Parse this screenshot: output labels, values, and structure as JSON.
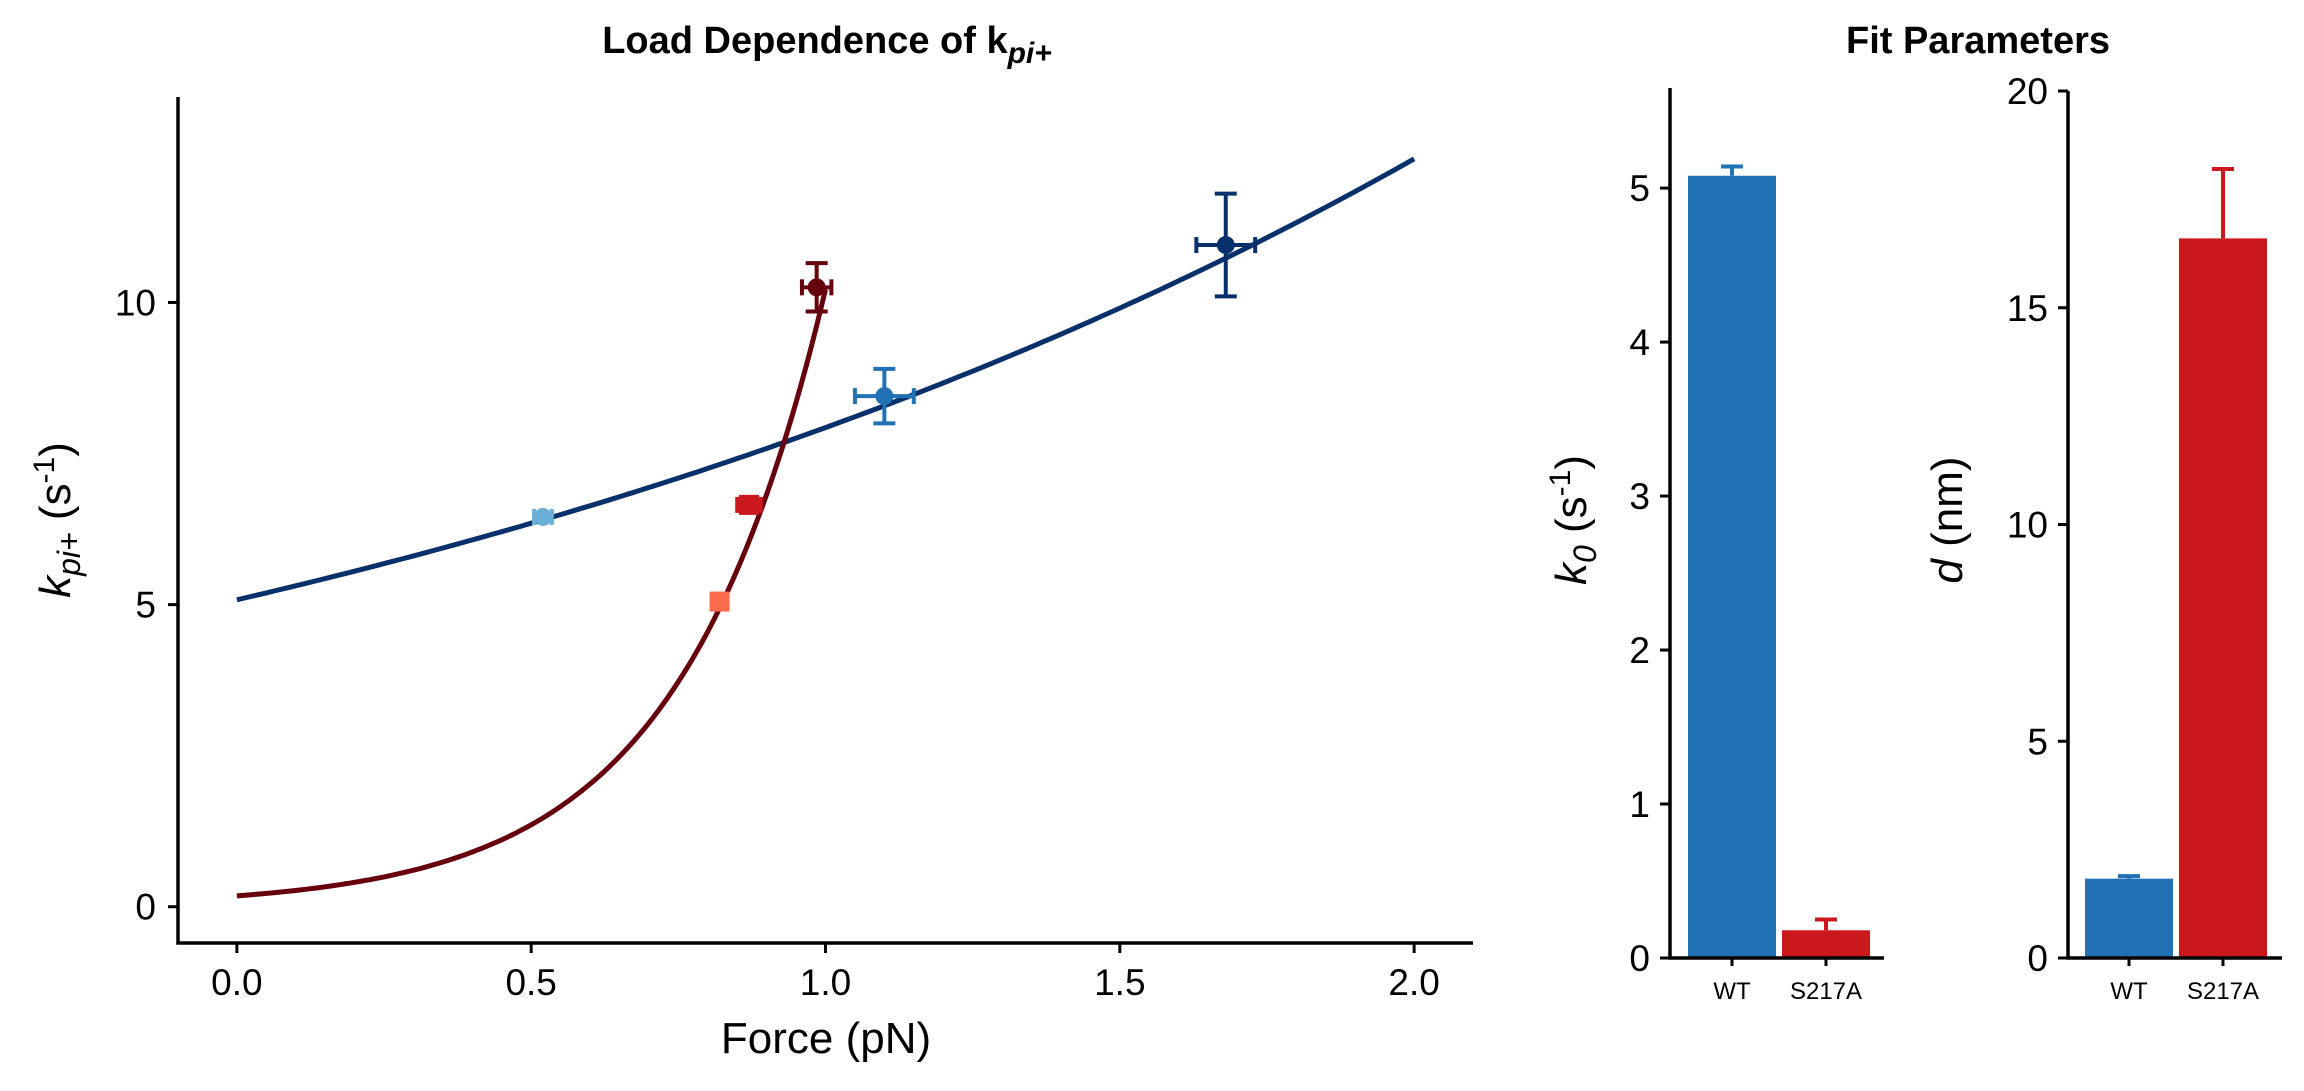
{
  "chart_data": [
    {
      "type": "scatter",
      "title": "Load Dependence of k",
      "title_sub": "pi+",
      "xlabel": "Force (pN)",
      "ylabel": "k",
      "ylabel_sub": "pi+",
      "ylabel_unit": " (s",
      "ylabel_unit_sup": "-1",
      "ylabel_unit_close": ")",
      "xlim": [
        -0.1,
        2.1
      ],
      "ylim": [
        -0.6,
        13.4
      ],
      "xticks": [
        "0.0",
        "0.5",
        "1.0",
        "1.5",
        "2.0"
      ],
      "xtick_values": [
        0,
        0.5,
        1.0,
        1.5,
        2.0
      ],
      "yticks": [
        "0",
        "5",
        "10"
      ],
      "ytick_values": [
        0,
        5,
        10
      ],
      "grid": false,
      "fits": [
        {
          "key": "wt_fit",
          "color": "#08306b",
          "k0": 5.08,
          "d_nm": 1.83,
          "x_range": [
            0,
            2.0
          ]
        },
        {
          "key": "s217a_fit",
          "color": "#67000d",
          "k0": 0.18,
          "d_nm": 16.6,
          "x_range": [
            0,
            1.0
          ]
        }
      ],
      "points": [
        {
          "key": "wt-p1",
          "x": 0.52,
          "y": 6.45,
          "xerr": 0.015,
          "yerr": 0.05,
          "color": "#6baed6",
          "marker": "circle"
        },
        {
          "key": "wt-p2",
          "x": 1.1,
          "y": 8.45,
          "xerr": 0.05,
          "yerr": 0.45,
          "color": "#2171b5",
          "marker": "circle"
        },
        {
          "key": "wt-p3",
          "x": 1.68,
          "y": 10.95,
          "xerr": 0.05,
          "yerr": 0.85,
          "color": "#08306b",
          "marker": "circle"
        },
        {
          "key": "s217a-p1",
          "x": 0.82,
          "y": 5.05,
          "xerr": 0.0,
          "yerr": 0.0,
          "color": "#fb6a4a",
          "marker": "square"
        },
        {
          "key": "s217a-p2",
          "x": 0.87,
          "y": 6.65,
          "xerr": 0.02,
          "yerr": 0.1,
          "color": "#cb181d",
          "marker": "square"
        },
        {
          "key": "s217a-p3",
          "x": 0.985,
          "y": 10.25,
          "xerr": 0.025,
          "yerr": 0.4,
          "color": "#67000d",
          "marker": "circle"
        }
      ]
    },
    {
      "type": "bar",
      "panel_title": "Fit Parameters",
      "categories": [
        "WT",
        "S217A"
      ],
      "values": [
        5.08,
        0.18
      ],
      "errors": [
        0.06,
        0.07
      ],
      "colors": [
        "#2171b5",
        "#cb181d"
      ],
      "ylabel": "k",
      "ylabel_sub": "0",
      "ylabel_unit": " (s",
      "ylabel_unit_sup": "-1",
      "ylabel_unit_close": ")",
      "ylim": [
        0,
        5.65
      ],
      "yticks": [
        "0",
        "1",
        "2",
        "3",
        "4",
        "5"
      ],
      "ytick_values": [
        0,
        1,
        2,
        3,
        4,
        5
      ]
    },
    {
      "type": "bar",
      "categories": [
        "WT",
        "S217A"
      ],
      "values": [
        1.83,
        16.6
      ],
      "errors": [
        0.06,
        1.6
      ],
      "colors": [
        "#2171b5",
        "#cb181d"
      ],
      "ylabel": "d",
      "ylabel_unit": " (nm)",
      "ylim": [
        0,
        20
      ],
      "yticks": [
        "0",
        "5",
        "10",
        "15",
        "20"
      ],
      "ytick_values": [
        0,
        5,
        10,
        15,
        20
      ]
    }
  ]
}
